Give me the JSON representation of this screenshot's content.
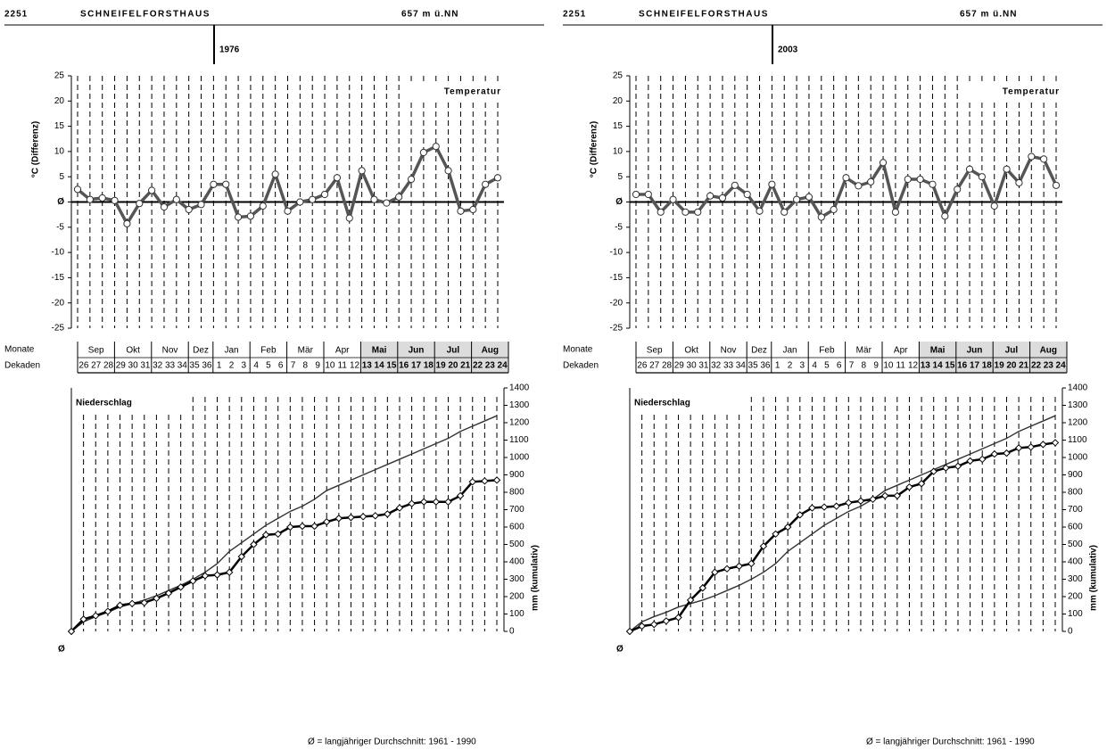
{
  "panels": [
    {
      "station_id": "2251",
      "station": "SCHNEIFELFORSTHAUS",
      "elevation": "657 m ü.NN",
      "year": "1976",
      "months_label": "Monate",
      "dekaden_label": "Dekaden",
      "months": [
        {
          "name": "Sep",
          "dekaden": [
            "26",
            "27",
            "28"
          ]
        },
        {
          "name": "Okt",
          "dekaden": [
            "29",
            "30",
            "31"
          ]
        },
        {
          "name": "Nov",
          "dekaden": [
            "32",
            "33",
            "34"
          ]
        },
        {
          "name": "Dez",
          "dekaden": [
            "35",
            "36"
          ]
        },
        {
          "name": "Jan",
          "dekaden": [
            "1",
            "2",
            "3"
          ]
        },
        {
          "name": "Feb",
          "dekaden": [
            "4",
            "5",
            "6"
          ]
        },
        {
          "name": "Mär",
          "dekaden": [
            "7",
            "8",
            "9"
          ]
        },
        {
          "name": "Apr",
          "dekaden": [
            "10",
            "11",
            "12"
          ]
        },
        {
          "name": "Mai",
          "dekaden": [
            "13",
            "14",
            "15"
          ],
          "highlight": true
        },
        {
          "name": "Jun",
          "dekaden": [
            "16",
            "17",
            "18"
          ],
          "highlight": true
        },
        {
          "name": "Jul",
          "dekaden": [
            "19",
            "20",
            "21"
          ],
          "highlight": true
        },
        {
          "name": "Aug",
          "dekaden": [
            "22",
            "23",
            "24"
          ],
          "highlight": true
        }
      ],
      "footer": "Ø = langjähriger Durchschnitt: 1961   -   1990"
    },
    {
      "station_id": "2251",
      "station": "SCHNEIFELFORSTHAUS",
      "elevation": "657 m ü.NN",
      "year": "2003",
      "months_label": "Monate",
      "dekaden_label": "Dekaden",
      "months": [
        {
          "name": "Sep",
          "dekaden": [
            "26",
            "27",
            "28"
          ]
        },
        {
          "name": "Okt",
          "dekaden": [
            "29",
            "30",
            "31"
          ]
        },
        {
          "name": "Nov",
          "dekaden": [
            "32",
            "33",
            "34"
          ]
        },
        {
          "name": "Dez",
          "dekaden": [
            "35",
            "36"
          ]
        },
        {
          "name": "Jan",
          "dekaden": [
            "1",
            "2",
            "3"
          ]
        },
        {
          "name": "Feb",
          "dekaden": [
            "4",
            "5",
            "6"
          ]
        },
        {
          "name": "Mär",
          "dekaden": [
            "7",
            "8",
            "9"
          ]
        },
        {
          "name": "Apr",
          "dekaden": [
            "10",
            "11",
            "12"
          ]
        },
        {
          "name": "Mai",
          "dekaden": [
            "13",
            "14",
            "15"
          ],
          "highlight": true
        },
        {
          "name": "Jun",
          "dekaden": [
            "16",
            "17",
            "18"
          ],
          "highlight": true
        },
        {
          "name": "Jul",
          "dekaden": [
            "19",
            "20",
            "21"
          ],
          "highlight": true
        },
        {
          "name": "Aug",
          "dekaden": [
            "22",
            "23",
            "24"
          ],
          "highlight": true
        }
      ],
      "footer": "Ø = langjähriger Durchschnitt: 1961   -   1990"
    }
  ],
  "chart_data": [
    {
      "type": "line",
      "title": "Temperatur",
      "ylabel": "°C (Differenz)",
      "color": "#555555",
      "marker": "circle",
      "values": [
        2.5,
        0.5,
        0.8,
        0.3,
        -4.3,
        -0.3,
        2.3,
        -1,
        0.5,
        -1.5,
        -0.5,
        3.5,
        3.5,
        -3,
        -2.8,
        -0.8,
        5.5,
        -1.8,
        0,
        0.5,
        1.5,
        4.8,
        -3.2,
        6.2,
        0.5,
        -0.2,
        1,
        4.5,
        9.8,
        11,
        6.2,
        -1.8,
        -1.5,
        3.5,
        4.8
      ],
      "ylim": [
        -25,
        25
      ],
      "yticks": [
        -25,
        -20,
        -15,
        -10,
        -5,
        {
          "value": 0,
          "label": "Ø"
        },
        5,
        10,
        15,
        20,
        25
      ]
    },
    {
      "type": "line",
      "title": "Niederschlag",
      "ylabel": "mm (kumulativ)",
      "origin_label": "Ø",
      "series": [
        {
          "color": "#333333",
          "marker": "none",
          "values": [
            0,
            55,
            85,
            110,
            140,
            160,
            180,
            205,
            235,
            265,
            300,
            340,
            390,
            460,
            510,
            560,
            610,
            650,
            690,
            720,
            760,
            810,
            840,
            870,
            900,
            930,
            960,
            990,
            1020,
            1050,
            1080,
            1110,
            1150,
            1180,
            1210,
            1240
          ]
        },
        {
          "color": "#000000",
          "marker": "diamond",
          "values": [
            0,
            70,
            90,
            115,
            150,
            160,
            165,
            190,
            220,
            255,
            290,
            320,
            325,
            340,
            430,
            500,
            555,
            560,
            600,
            605,
            605,
            630,
            650,
            655,
            660,
            665,
            675,
            710,
            735,
            745,
            745,
            745,
            780,
            860,
            865,
            870
          ]
        }
      ],
      "ylim": [
        0,
        1400
      ],
      "yticks": [
        0,
        100,
        200,
        300,
        400,
        500,
        600,
        700,
        800,
        900,
        1000,
        1100,
        1200,
        1300,
        1400
      ]
    },
    {
      "type": "line",
      "title": "Temperatur",
      "ylabel": "°C (Differenz)",
      "color": "#555555",
      "marker": "circle",
      "values": [
        1.5,
        1.5,
        -2,
        0.5,
        -2,
        -2,
        1.2,
        0.8,
        3.3,
        1.5,
        -1.8,
        3.5,
        -2,
        0.5,
        1,
        -3,
        -1.5,
        4.8,
        3.2,
        4,
        7.8,
        -2,
        4.5,
        4.5,
        3.5,
        -2.8,
        2.5,
        6.5,
        5,
        -0.8,
        6.5,
        3.8,
        9,
        8.5,
        3.3
      ],
      "ylim": [
        -25,
        25
      ],
      "yticks": [
        -25,
        -20,
        -15,
        -10,
        -5,
        {
          "value": 0,
          "label": "Ø"
        },
        5,
        10,
        15,
        20,
        25
      ]
    },
    {
      "type": "line",
      "title": "Niederschlag",
      "ylabel": "mm (kumulativ)",
      "origin_label": "Ø",
      "series": [
        {
          "color": "#333333",
          "marker": "none",
          "values": [
            0,
            55,
            85,
            110,
            140,
            160,
            180,
            205,
            235,
            265,
            300,
            340,
            390,
            460,
            510,
            560,
            610,
            650,
            690,
            720,
            760,
            810,
            840,
            870,
            900,
            930,
            960,
            990,
            1020,
            1050,
            1080,
            1110,
            1150,
            1180,
            1210,
            1240
          ]
        },
        {
          "color": "#000000",
          "marker": "diamond",
          "values": [
            0,
            30,
            40,
            60,
            80,
            180,
            250,
            340,
            360,
            375,
            390,
            490,
            560,
            600,
            670,
            710,
            715,
            720,
            740,
            750,
            760,
            780,
            780,
            830,
            850,
            920,
            940,
            950,
            980,
            990,
            1020,
            1025,
            1055,
            1060,
            1075,
            1085
          ]
        }
      ],
      "ylim": [
        0,
        1400
      ],
      "yticks": [
        0,
        100,
        200,
        300,
        400,
        500,
        600,
        700,
        800,
        900,
        1000,
        1100,
        1200,
        1300,
        1400
      ]
    }
  ]
}
